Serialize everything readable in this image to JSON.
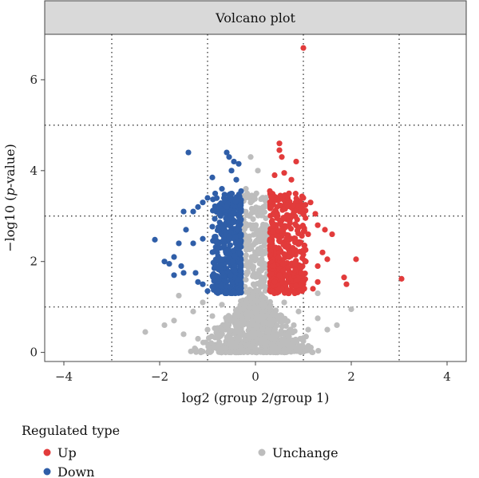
{
  "colors": {
    "up": "#e23b3b",
    "down": "#2f5ea8",
    "unchange": "#bdbdbd",
    "threshold": "#222222",
    "strip_fill": "#d9d9d9"
  },
  "chart_data": {
    "type": "scatter",
    "title": "Volcano plot",
    "xlabel": "log2 (group 2/group 1)",
    "ylabel_prefix": "−log10 (",
    "ylabel_italic": "p",
    "ylabel_suffix": "-value)",
    "xlim": [
      -4.4,
      4.4
    ],
    "ylim": [
      -0.2,
      7.0
    ],
    "xticks": [
      -4,
      -2,
      0,
      2,
      4
    ],
    "xtick_labels": [
      "−4",
      "−2",
      "0",
      "2",
      "4"
    ],
    "yticks": [
      0,
      2,
      4,
      6
    ],
    "ytick_labels": [
      "0",
      "2",
      "4",
      "6"
    ],
    "vlines": [
      -3,
      -1,
      1,
      3
    ],
    "hlines": [
      1,
      3,
      5
    ],
    "legend": {
      "title": "Regulated type",
      "placement": "bottom-left",
      "entries": [
        {
          "key": "up",
          "label": "Up"
        },
        {
          "key": "down",
          "label": "Down"
        },
        {
          "key": "unchange",
          "label": "Unchange"
        }
      ]
    },
    "series": [
      {
        "key": "up",
        "points": [
          [
            1.0,
            6.7
          ],
          [
            0.5,
            4.6
          ],
          [
            0.5,
            4.45
          ],
          [
            0.85,
            4.2
          ],
          [
            0.55,
            4.3
          ],
          [
            0.4,
            3.9
          ],
          [
            0.6,
            3.95
          ],
          [
            0.75,
            3.8
          ],
          [
            0.3,
            3.55
          ],
          [
            0.7,
            3.5
          ],
          [
            1.0,
            3.4
          ],
          [
            1.15,
            3.3
          ],
          [
            1.25,
            3.05
          ],
          [
            1.3,
            2.8
          ],
          [
            1.45,
            2.7
          ],
          [
            1.1,
            2.6
          ],
          [
            1.6,
            2.6
          ],
          [
            1.4,
            2.2
          ],
          [
            1.5,
            2.05
          ],
          [
            1.3,
            1.9
          ],
          [
            2.1,
            2.05
          ],
          [
            1.3,
            1.55
          ],
          [
            1.85,
            1.65
          ],
          [
            1.9,
            1.5
          ],
          [
            3.05,
            1.62
          ],
          [
            0.9,
            2.4
          ],
          [
            1.05,
            2.0
          ],
          [
            0.95,
            1.75
          ],
          [
            1.2,
            1.4
          ],
          [
            0.8,
            3.1
          ],
          [
            0.45,
            3.2
          ],
          [
            0.35,
            2.9
          ],
          [
            0.55,
            2.7
          ],
          [
            0.65,
            2.5
          ],
          [
            0.42,
            2.3
          ],
          [
            0.7,
            2.1
          ],
          [
            0.38,
            1.9
          ],
          [
            0.5,
            1.7
          ],
          [
            0.62,
            1.5
          ],
          [
            0.34,
            1.35
          ],
          [
            0.82,
            1.3
          ],
          [
            0.47,
            2.55
          ],
          [
            0.58,
            1.95
          ],
          [
            0.72,
            2.85
          ],
          [
            0.88,
            1.6
          ],
          [
            0.31,
            2.15
          ],
          [
            0.52,
            3.45
          ],
          [
            0.66,
            3.25
          ],
          [
            0.78,
            2.3
          ],
          [
            0.4,
            1.55
          ]
        ]
      },
      {
        "key": "down",
        "points": [
          [
            -1.4,
            4.4
          ],
          [
            -0.6,
            4.4
          ],
          [
            -0.55,
            4.3
          ],
          [
            -0.45,
            4.2
          ],
          [
            -0.35,
            4.15
          ],
          [
            -0.5,
            4.0
          ],
          [
            -0.9,
            3.85
          ],
          [
            -0.4,
            3.8
          ],
          [
            -0.3,
            3.55
          ],
          [
            -0.7,
            3.6
          ],
          [
            -1.0,
            3.4
          ],
          [
            -1.1,
            3.3
          ],
          [
            -1.2,
            3.2
          ],
          [
            -1.3,
            3.1
          ],
          [
            -1.5,
            3.1
          ],
          [
            -1.45,
            2.7
          ],
          [
            -1.1,
            2.5
          ],
          [
            -1.3,
            2.4
          ],
          [
            -1.6,
            2.4
          ],
          [
            -2.1,
            2.48
          ],
          [
            -1.7,
            2.1
          ],
          [
            -1.9,
            2.0
          ],
          [
            -1.8,
            1.95
          ],
          [
            -1.55,
            1.9
          ],
          [
            -1.7,
            1.7
          ],
          [
            -1.5,
            1.75
          ],
          [
            -1.25,
            1.75
          ],
          [
            -1.2,
            1.55
          ],
          [
            -1.1,
            1.5
          ],
          [
            -0.9,
            1.45
          ],
          [
            -1.0,
            1.35
          ],
          [
            -0.85,
            1.7
          ],
          [
            -0.6,
            3.2
          ],
          [
            -0.45,
            2.9
          ],
          [
            -0.38,
            2.7
          ],
          [
            -0.55,
            2.55
          ],
          [
            -0.65,
            2.35
          ],
          [
            -0.32,
            2.2
          ],
          [
            -0.48,
            2.0
          ],
          [
            -0.72,
            1.85
          ],
          [
            -0.36,
            1.6
          ],
          [
            -0.58,
            1.45
          ],
          [
            -0.42,
            1.3
          ],
          [
            -0.75,
            3.05
          ],
          [
            -0.3,
            3.15
          ],
          [
            -0.68,
            2.75
          ],
          [
            -0.52,
            1.7
          ],
          [
            -0.8,
            2.2
          ],
          [
            -0.33,
            2.45
          ],
          [
            -0.62,
            1.35
          ]
        ]
      },
      {
        "key": "unchange",
        "points": [
          [
            -2.3,
            0.45
          ],
          [
            -1.6,
            1.25
          ],
          [
            2.0,
            0.95
          ],
          [
            1.3,
            1.3
          ],
          [
            -0.1,
            4.3
          ],
          [
            0.05,
            4.0
          ],
          [
            -0.2,
            3.6
          ],
          [
            -0.1,
            3.3
          ],
          [
            0.1,
            3.1
          ],
          [
            -0.05,
            2.8
          ],
          [
            0.15,
            2.6
          ],
          [
            -0.15,
            2.4
          ],
          [
            0.05,
            2.2
          ],
          [
            -0.1,
            2.0
          ],
          [
            0.12,
            1.8
          ],
          [
            -0.2,
            1.6
          ],
          [
            0.2,
            1.45
          ],
          [
            -0.05,
            1.3
          ],
          [
            0.0,
            1.15
          ],
          [
            -1.3,
            0.9
          ],
          [
            -0.9,
            0.8
          ],
          [
            -0.6,
            0.7
          ],
          [
            -0.3,
            0.6
          ],
          [
            0.2,
            0.8
          ],
          [
            0.5,
            0.7
          ],
          [
            0.8,
            0.6
          ],
          [
            1.1,
            0.5
          ],
          [
            1.3,
            0.75
          ],
          [
            -1.0,
            0.5
          ],
          [
            -1.5,
            0.4
          ],
          [
            -1.2,
            0.3
          ],
          [
            -0.8,
            0.35
          ],
          [
            -0.5,
            0.25
          ],
          [
            -0.2,
            0.15
          ],
          [
            0.1,
            0.2
          ],
          [
            0.4,
            0.3
          ],
          [
            0.7,
            0.35
          ],
          [
            1.0,
            0.25
          ],
          [
            1.5,
            0.5
          ],
          [
            -0.4,
            0.9
          ],
          [
            0.3,
            1.0
          ],
          [
            -0.7,
            1.05
          ],
          [
            0.6,
            1.1
          ],
          [
            0.0,
            0.05
          ],
          [
            -0.1,
            0.4
          ],
          [
            0.15,
            0.5
          ],
          [
            -0.25,
            0.95
          ],
          [
            0.25,
            0.65
          ],
          [
            -0.05,
            1.7
          ],
          [
            0.08,
            2.5
          ],
          [
            -0.12,
            3.0
          ],
          [
            0.02,
            3.5
          ],
          [
            -0.08,
            2.1
          ],
          [
            0.18,
            1.2
          ],
          [
            -0.18,
            1.1
          ],
          [
            1.7,
            0.6
          ],
          [
            -1.7,
            0.7
          ],
          [
            -1.9,
            0.6
          ],
          [
            0.9,
            0.9
          ],
          [
            -1.1,
            1.1
          ]
        ]
      }
    ]
  }
}
